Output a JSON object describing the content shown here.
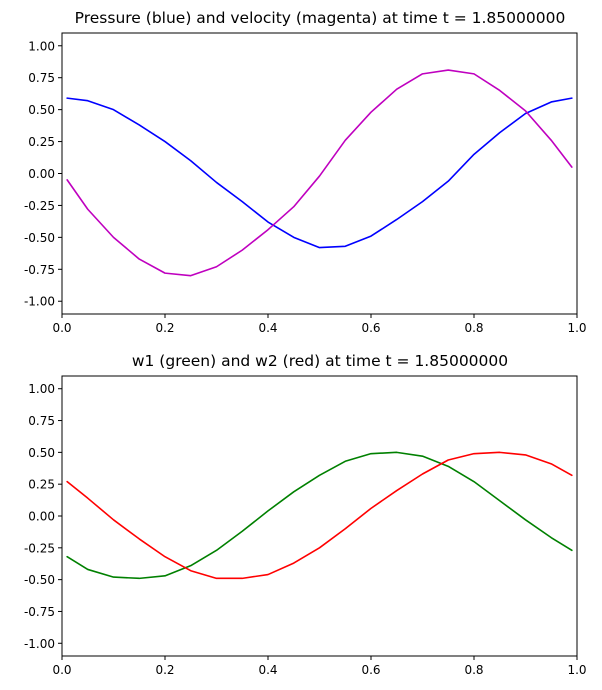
{
  "chart_data": [
    {
      "type": "line",
      "title": "Pressure (blue) and velocity (magenta) at time t =     1.85000000",
      "xlabel": "",
      "ylabel": "",
      "xlim": [
        0,
        1
      ],
      "ylim": [
        -1.1,
        1.1
      ],
      "xticks": [
        "0.0",
        "0.2",
        "0.4",
        "0.6",
        "0.8",
        "1.0"
      ],
      "yticks": [
        "-1.00",
        "-0.75",
        "-0.50",
        "-0.25",
        "0.00",
        "0.25",
        "0.50",
        "0.75",
        "1.00"
      ],
      "grid": false,
      "series": [
        {
          "color": "#0000ff",
          "x": [
            0.01,
            0.05,
            0.1,
            0.15,
            0.2,
            0.25,
            0.3,
            0.35,
            0.4,
            0.45,
            0.5,
            0.55,
            0.6,
            0.65,
            0.7,
            0.75,
            0.8,
            0.85,
            0.9,
            0.95,
            0.99
          ],
          "y": [
            0.59,
            0.57,
            0.5,
            0.38,
            0.25,
            0.1,
            -0.07,
            -0.22,
            -0.38,
            -0.5,
            -0.58,
            -0.57,
            -0.49,
            -0.36,
            -0.22,
            -0.06,
            0.15,
            0.32,
            0.47,
            0.56,
            0.59
          ]
        },
        {
          "color": "#bf00bf",
          "x": [
            0.01,
            0.05,
            0.1,
            0.15,
            0.2,
            0.25,
            0.3,
            0.35,
            0.4,
            0.45,
            0.5,
            0.55,
            0.6,
            0.65,
            0.7,
            0.75,
            0.8,
            0.85,
            0.9,
            0.95,
            0.99
          ],
          "y": [
            -0.05,
            -0.28,
            -0.5,
            -0.67,
            -0.78,
            -0.8,
            -0.73,
            -0.6,
            -0.44,
            -0.26,
            -0.02,
            0.26,
            0.48,
            0.66,
            0.78,
            0.81,
            0.78,
            0.65,
            0.49,
            0.26,
            0.05
          ]
        }
      ]
    },
    {
      "type": "line",
      "title": "w1 (green) and w2 (red) at time t =     1.85000000",
      "xlabel": "",
      "ylabel": "",
      "xlim": [
        0,
        1
      ],
      "ylim": [
        -1.1,
        1.1
      ],
      "xticks": [
        "0.0",
        "0.2",
        "0.4",
        "0.6",
        "0.8",
        "1.0"
      ],
      "yticks": [
        "-1.00",
        "-0.75",
        "-0.50",
        "-0.25",
        "0.00",
        "0.25",
        "0.50",
        "0.75",
        "1.00"
      ],
      "grid": false,
      "series": [
        {
          "color": "#008000",
          "x": [
            0.01,
            0.05,
            0.1,
            0.15,
            0.2,
            0.25,
            0.3,
            0.35,
            0.4,
            0.45,
            0.5,
            0.55,
            0.6,
            0.65,
            0.7,
            0.75,
            0.8,
            0.85,
            0.9,
            0.95,
            0.99
          ],
          "y": [
            -0.32,
            -0.42,
            -0.48,
            -0.49,
            -0.47,
            -0.39,
            -0.27,
            -0.12,
            0.04,
            0.19,
            0.32,
            0.43,
            0.49,
            0.5,
            0.47,
            0.39,
            0.27,
            0.12,
            -0.03,
            -0.17,
            -0.27
          ]
        },
        {
          "color": "#ff0000",
          "x": [
            0.01,
            0.05,
            0.1,
            0.15,
            0.2,
            0.25,
            0.3,
            0.35,
            0.4,
            0.45,
            0.5,
            0.55,
            0.6,
            0.65,
            0.7,
            0.75,
            0.8,
            0.85,
            0.9,
            0.95,
            0.99
          ],
          "y": [
            0.27,
            0.14,
            -0.03,
            -0.18,
            -0.32,
            -0.43,
            -0.49,
            -0.49,
            -0.46,
            -0.37,
            -0.25,
            -0.1,
            0.06,
            0.2,
            0.33,
            0.44,
            0.49,
            0.5,
            0.48,
            0.41,
            0.32
          ]
        }
      ]
    }
  ]
}
